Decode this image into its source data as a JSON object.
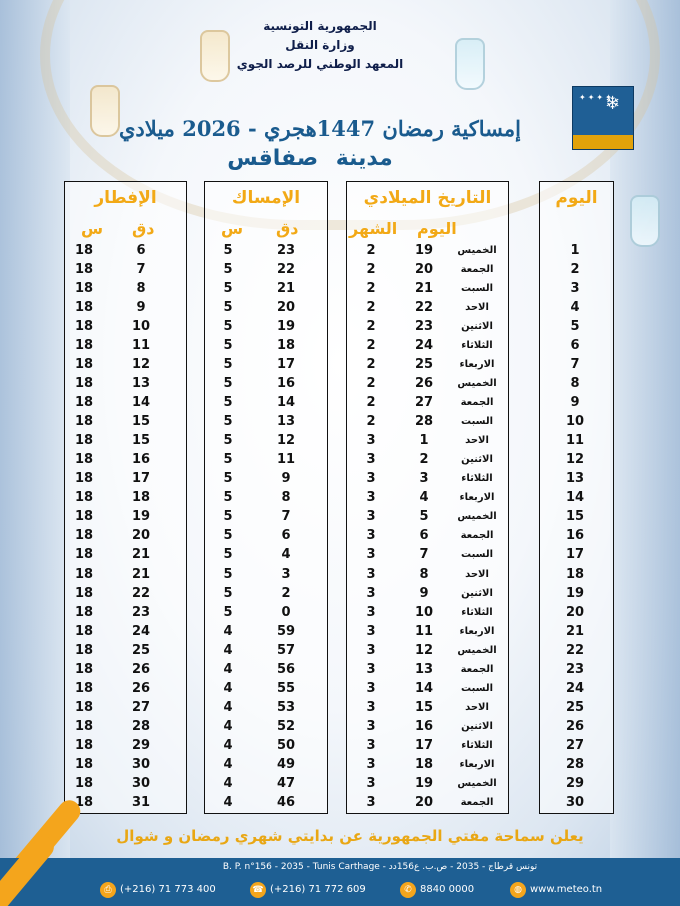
{
  "header": {
    "line1": "الجمهورية التونسية",
    "line2": "وزارة النقل",
    "line3": "المعهد الوطني للرصد الجوي"
  },
  "title": "إمساكية رمضان 1447هجري - 2026 ميلادي",
  "city": "مدينة صفاقس",
  "columns": {
    "day": "اليوم",
    "gregorian": "التاريخ الميلادي",
    "greg_day": "اليوم",
    "greg_month": "الشهر",
    "imsak": "الإمساك",
    "iftar": "الإفطار",
    "minutes": "دق",
    "hours": "س"
  },
  "rows": [
    {
      "n": "1",
      "wd": "الخميس",
      "d": "19",
      "m": "2",
      "ih": "5",
      "im": "23",
      "fh": "18",
      "fm": "6"
    },
    {
      "n": "2",
      "wd": "الجمعة",
      "d": "20",
      "m": "2",
      "ih": "5",
      "im": "22",
      "fh": "18",
      "fm": "7"
    },
    {
      "n": "3",
      "wd": "السبت",
      "d": "21",
      "m": "2",
      "ih": "5",
      "im": "21",
      "fh": "18",
      "fm": "8"
    },
    {
      "n": "4",
      "wd": "الاحد",
      "d": "22",
      "m": "2",
      "ih": "5",
      "im": "20",
      "fh": "18",
      "fm": "9"
    },
    {
      "n": "5",
      "wd": "الاثنين",
      "d": "23",
      "m": "2",
      "ih": "5",
      "im": "19",
      "fh": "18",
      "fm": "10"
    },
    {
      "n": "6",
      "wd": "الثلاثاء",
      "d": "24",
      "m": "2",
      "ih": "5",
      "im": "18",
      "fh": "18",
      "fm": "11"
    },
    {
      "n": "7",
      "wd": "الاربعاء",
      "d": "25",
      "m": "2",
      "ih": "5",
      "im": "17",
      "fh": "18",
      "fm": "12"
    },
    {
      "n": "8",
      "wd": "الخميس",
      "d": "26",
      "m": "2",
      "ih": "5",
      "im": "16",
      "fh": "18",
      "fm": "13"
    },
    {
      "n": "9",
      "wd": "الجمعة",
      "d": "27",
      "m": "2",
      "ih": "5",
      "im": "14",
      "fh": "18",
      "fm": "14"
    },
    {
      "n": "10",
      "wd": "السبت",
      "d": "28",
      "m": "2",
      "ih": "5",
      "im": "13",
      "fh": "18",
      "fm": "15"
    },
    {
      "n": "11",
      "wd": "الاحد",
      "d": "1",
      "m": "3",
      "ih": "5",
      "im": "12",
      "fh": "18",
      "fm": "15"
    },
    {
      "n": "12",
      "wd": "الاثنين",
      "d": "2",
      "m": "3",
      "ih": "5",
      "im": "11",
      "fh": "18",
      "fm": "16"
    },
    {
      "n": "13",
      "wd": "الثلاثاء",
      "d": "3",
      "m": "3",
      "ih": "5",
      "im": "9",
      "fh": "18",
      "fm": "17"
    },
    {
      "n": "14",
      "wd": "الاربعاء",
      "d": "4",
      "m": "3",
      "ih": "5",
      "im": "8",
      "fh": "18",
      "fm": "18"
    },
    {
      "n": "15",
      "wd": "الخميس",
      "d": "5",
      "m": "3",
      "ih": "5",
      "im": "7",
      "fh": "18",
      "fm": "19"
    },
    {
      "n": "16",
      "wd": "الجمعة",
      "d": "6",
      "m": "3",
      "ih": "5",
      "im": "6",
      "fh": "18",
      "fm": "20"
    },
    {
      "n": "17",
      "wd": "السبت",
      "d": "7",
      "m": "3",
      "ih": "5",
      "im": "4",
      "fh": "18",
      "fm": "21"
    },
    {
      "n": "18",
      "wd": "الاحد",
      "d": "8",
      "m": "3",
      "ih": "5",
      "im": "3",
      "fh": "18",
      "fm": "21"
    },
    {
      "n": "19",
      "wd": "الاثنين",
      "d": "9",
      "m": "3",
      "ih": "5",
      "im": "2",
      "fh": "18",
      "fm": "22"
    },
    {
      "n": "20",
      "wd": "الثلاثاء",
      "d": "10",
      "m": "3",
      "ih": "5",
      "im": "0",
      "fh": "18",
      "fm": "23"
    },
    {
      "n": "21",
      "wd": "الاربعاء",
      "d": "11",
      "m": "3",
      "ih": "4",
      "im": "59",
      "fh": "18",
      "fm": "24"
    },
    {
      "n": "22",
      "wd": "الخميس",
      "d": "12",
      "m": "3",
      "ih": "4",
      "im": "57",
      "fh": "18",
      "fm": "25"
    },
    {
      "n": "23",
      "wd": "الجمعة",
      "d": "13",
      "m": "3",
      "ih": "4",
      "im": "56",
      "fh": "18",
      "fm": "26"
    },
    {
      "n": "24",
      "wd": "السبت",
      "d": "14",
      "m": "3",
      "ih": "4",
      "im": "55",
      "fh": "18",
      "fm": "26"
    },
    {
      "n": "25",
      "wd": "الاحد",
      "d": "15",
      "m": "3",
      "ih": "4",
      "im": "53",
      "fh": "18",
      "fm": "27"
    },
    {
      "n": "26",
      "wd": "الاثنين",
      "d": "16",
      "m": "3",
      "ih": "4",
      "im": "52",
      "fh": "18",
      "fm": "28"
    },
    {
      "n": "27",
      "wd": "الثلاثاء",
      "d": "17",
      "m": "3",
      "ih": "4",
      "im": "50",
      "fh": "18",
      "fm": "29"
    },
    {
      "n": "28",
      "wd": "الاربعاء",
      "d": "18",
      "m": "3",
      "ih": "4",
      "im": "49",
      "fh": "18",
      "fm": "30"
    },
    {
      "n": "29",
      "wd": "الخميس",
      "d": "19",
      "m": "3",
      "ih": "4",
      "im": "47",
      "fh": "18",
      "fm": "30"
    },
    {
      "n": "30",
      "wd": "الجمعة",
      "d": "20",
      "m": "3",
      "ih": "4",
      "im": "46",
      "fh": "18",
      "fm": "31"
    }
  ],
  "announcement": "يعلن سماحة مفتي الجمهورية عن بدايتي شهري رمضان و شوال",
  "footer": {
    "address": "B. P. n°156 - 2035 - Tunis Carthage - تونس قرطاج - 2035 - ص.ب. ع156دد",
    "fax": "(+216) 71 773 400",
    "phone": "(+216) 71 772 609",
    "hotline": "8840 0000",
    "website": "www.meteo.tn"
  },
  "colors": {
    "title": "#1a5b8e",
    "header_accent": "#f2a916",
    "footer": "#1e5f93",
    "stripe": "#f4a51c"
  }
}
